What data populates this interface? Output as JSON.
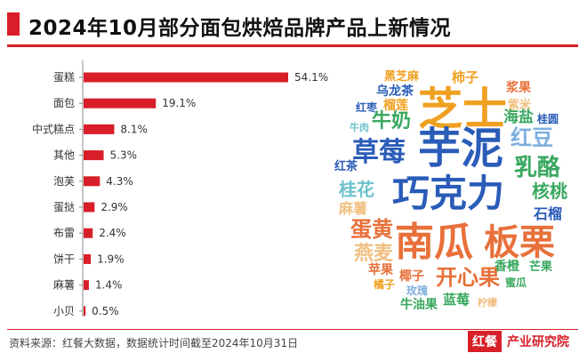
{
  "title": "2024年10月部分面包烘焙品牌产品上新情况",
  "footer": {
    "source": "资料来源：红餐大数据，数据统计时间截至2024年10月31日",
    "brand_logo": "红餐",
    "brand_name": "产业研究院"
  },
  "colors": {
    "accent": "#d81e28",
    "bar": "#d81e28"
  },
  "chart_data": {
    "type": "bar",
    "orientation": "horizontal",
    "categories": [
      "蛋糕",
      "面包",
      "中式糕点",
      "其他",
      "泡芙",
      "蛋挞",
      "布雷",
      "饼干",
      "麻薯",
      "小贝"
    ],
    "values": [
      54.1,
      19.1,
      8.1,
      5.3,
      4.3,
      2.9,
      2.4,
      1.9,
      1.4,
      0.5
    ],
    "value_labels": [
      "54.1%",
      "19.1%",
      "8.1%",
      "5.3%",
      "4.3%",
      "2.9%",
      "2.4%",
      "1.9%",
      "1.4%",
      "0.5%"
    ],
    "unit": "%",
    "xlim": [
      0,
      60
    ]
  },
  "word_cloud": {
    "words": [
      {
        "text": "芝士",
        "color": "#f0a020"
      },
      {
        "text": "芋泥",
        "color": "#2a5cb8"
      },
      {
        "text": "巧克力",
        "color": "#2a5cb8"
      },
      {
        "text": "南瓜",
        "color": "#e8703a"
      },
      {
        "text": "板栗",
        "color": "#e8703a"
      },
      {
        "text": "草莓",
        "color": "#2a5cb8"
      },
      {
        "text": "乳酪",
        "color": "#3aa860"
      },
      {
        "text": "牛奶",
        "color": "#3aa860"
      },
      {
        "text": "红豆",
        "color": "#7eaee0"
      },
      {
        "text": "蛋黄",
        "color": "#e8703a"
      },
      {
        "text": "开心果",
        "color": "#e8703a"
      },
      {
        "text": "桂花",
        "color": "#6fc2cc"
      },
      {
        "text": "核桃",
        "color": "#3aa860"
      },
      {
        "text": "燕麦",
        "color": "#f0c080"
      },
      {
        "text": "麻薯",
        "color": "#f0c080"
      },
      {
        "text": "石榴",
        "color": "#2a5cb8"
      },
      {
        "text": "海盐",
        "color": "#3aa860"
      },
      {
        "text": "柿子",
        "color": "#f0a020"
      },
      {
        "text": "黑芝麻",
        "color": "#f0a020"
      },
      {
        "text": "乌龙茶",
        "color": "#2a5cb8"
      },
      {
        "text": "榴莲",
        "color": "#f0a020"
      },
      {
        "text": "红枣",
        "color": "#2a5cb8"
      },
      {
        "text": "浆果",
        "color": "#e8703a"
      },
      {
        "text": "紫米",
        "color": "#f0c080"
      },
      {
        "text": "桂圆",
        "color": "#2a5cb8"
      },
      {
        "text": "牛肉",
        "color": "#6fc2cc"
      },
      {
        "text": "红茶",
        "color": "#2a5cb8"
      },
      {
        "text": "苹果",
        "color": "#e8703a"
      },
      {
        "text": "椰子",
        "color": "#e8703a"
      },
      {
        "text": "橘子",
        "color": "#f0a020"
      },
      {
        "text": "玫瑰",
        "color": "#7eaee0"
      },
      {
        "text": "牛油果",
        "color": "#3aa860"
      },
      {
        "text": "蓝莓",
        "color": "#3aa860"
      },
      {
        "text": "柠檬",
        "color": "#f0c080"
      },
      {
        "text": "香橙",
        "color": "#3aa860"
      },
      {
        "text": "芒果",
        "color": "#3aa860"
      },
      {
        "text": "蜜瓜",
        "color": "#3aa860"
      }
    ]
  }
}
